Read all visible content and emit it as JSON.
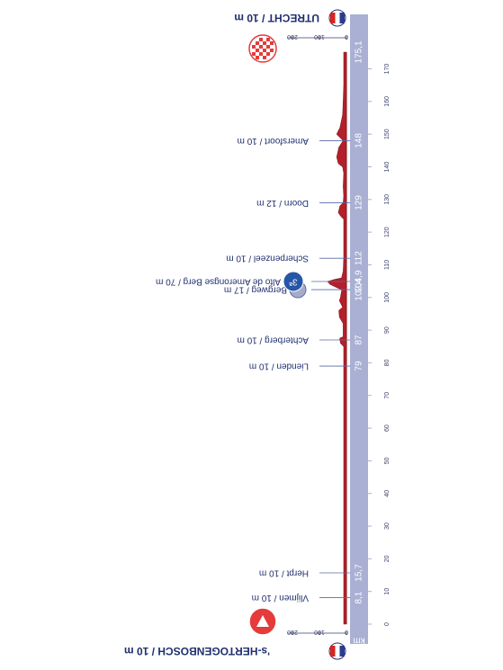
{
  "chart_data": {
    "type": "area",
    "title": "",
    "start": {
      "name": "'s-HERTOGENBOSCH / 10 m",
      "flag_colors": [
        "#d7261e",
        "#ffffff",
        "#2c3b8f"
      ]
    },
    "finish": {
      "name": "UTRECHT / 10 m",
      "flag_colors": [
        "#d7261e",
        "#ffffff",
        "#2c3b8f"
      ]
    },
    "x_unit": "km",
    "xlim": [
      0,
      175.1
    ],
    "x_ticks": [
      0,
      10,
      20,
      30,
      40,
      50,
      60,
      70,
      80,
      90,
      100,
      110,
      120,
      130,
      140,
      150,
      160,
      170
    ],
    "alt_ticks": [
      0,
      100,
      200
    ],
    "waypoints": [
      {
        "km": "8,1",
        "x": 8.1,
        "label": "Vlijmen / 10 m"
      },
      {
        "km": "15,7",
        "x": 15.7,
        "label": "Herpt / 10 m"
      },
      {
        "km": "79",
        "x": 79,
        "label": "Lienden / 10 m"
      },
      {
        "km": "87",
        "x": 87,
        "label": "Achterberg / 10 m"
      },
      {
        "km": "102,4",
        "x": 102.4,
        "label": "Bergweg / 17 m",
        "climb": "small"
      },
      {
        "km": "104,9",
        "x": 104.9,
        "label": "Alto de Amerongse Berg / 70 m",
        "climb": "cat3",
        "climb_badge": "3ª"
      },
      {
        "km": "112",
        "x": 112,
        "label": "Scherpenzeel / 10 m"
      },
      {
        "km": "129",
        "x": 129,
        "label": "Doorn / 12 m"
      },
      {
        "km": "148",
        "x": 148,
        "label": "Amersfoort / 10 m"
      },
      {
        "km": "175,1",
        "x": 175.1,
        "label": ""
      }
    ],
    "series": [
      {
        "x": [
          0,
          8.1,
          15.7,
          30,
          50,
          70,
          79,
          85,
          86,
          87.5,
          88,
          92,
          94,
          96,
          97,
          98,
          99,
          100,
          101,
          102.4,
          103,
          104,
          104.9,
          105.5,
          106,
          108,
          110,
          112,
          120,
          124,
          125,
          126,
          128,
          129,
          131,
          134,
          138,
          140,
          141,
          143,
          146,
          148,
          150,
          152,
          156,
          160,
          165,
          170,
          175.1
        ],
        "y": [
          10,
          10,
          10,
          10,
          10,
          10,
          10,
          10,
          22,
          25,
          12,
          12,
          26,
          28,
          14,
          20,
          26,
          22,
          20,
          17,
          35,
          60,
          70,
          45,
          18,
          12,
          11,
          10,
          10,
          10,
          22,
          30,
          24,
          12,
          10,
          12,
          10,
          14,
          30,
          36,
          28,
          12,
          36,
          24,
          14,
          12,
          10,
          10,
          10
        ]
      }
    ],
    "colors": {
      "profile": "#b2202a",
      "band": "#a9b0d3",
      "text": "#1e2f6e",
      "finish_fill": "#e53b3b",
      "climb_badge": "#2656a8",
      "climb_small": "#a5abc9"
    }
  }
}
